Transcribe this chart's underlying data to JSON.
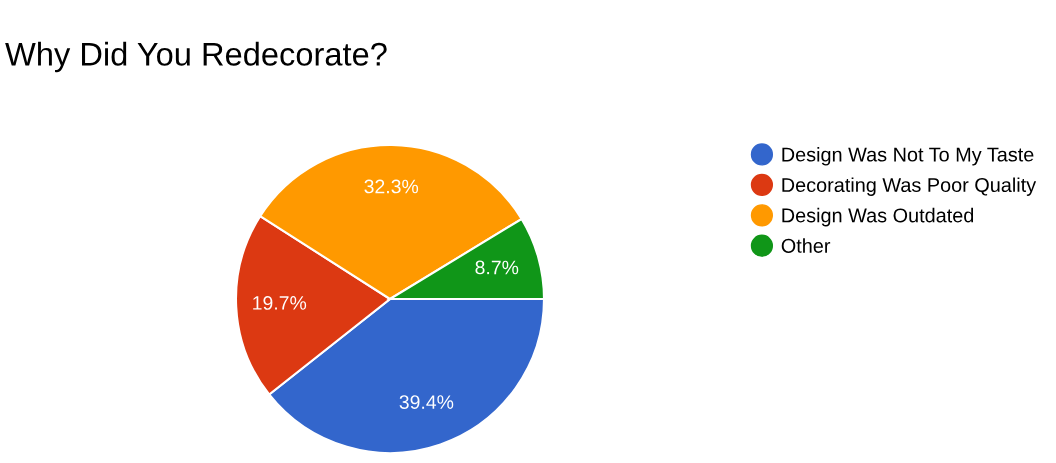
{
  "chart_data": {
    "type": "pie",
    "title": "Why Did You Redecorate?",
    "categories": [
      "Design Was Not To My Taste",
      "Decorating Was Poor Quality",
      "Design Was Outdated",
      "Other"
    ],
    "values": [
      39.4,
      19.7,
      32.3,
      8.7
    ],
    "value_labels": [
      "39.4%",
      "19.7%",
      "32.3%",
      "8.7%"
    ],
    "colors": [
      "#3366cc",
      "#dc3912",
      "#ff9900",
      "#109618"
    ],
    "legend": "right"
  }
}
